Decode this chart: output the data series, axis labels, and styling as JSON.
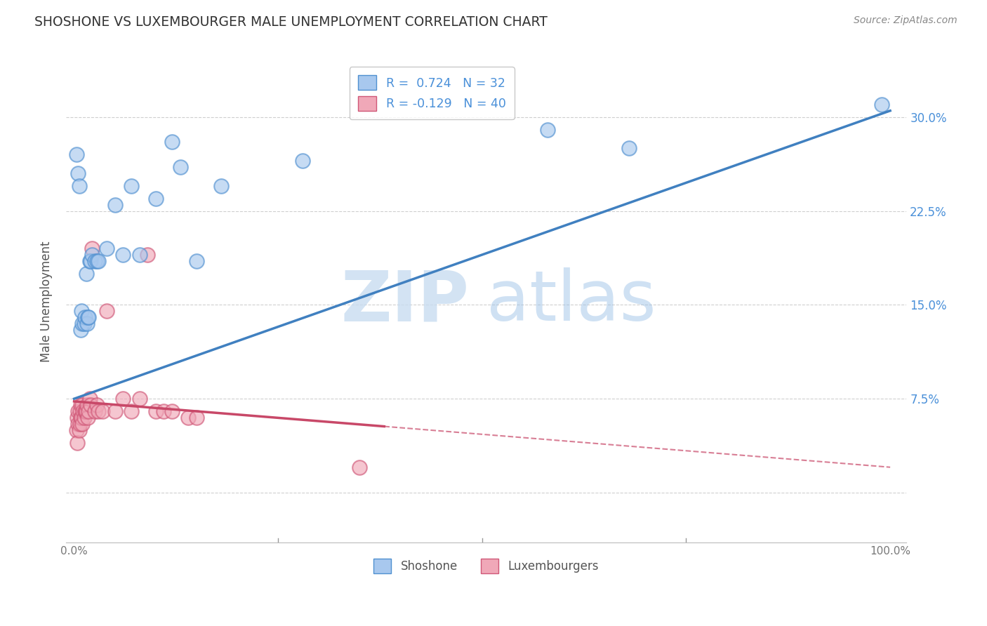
{
  "title": "SHOSHONE VS LUXEMBOURGER MALE UNEMPLOYMENT CORRELATION CHART",
  "source": "Source: ZipAtlas.com",
  "ylabel": "Male Unemployment",
  "xlim": [
    -0.01,
    1.02
  ],
  "ylim": [
    -0.04,
    0.345
  ],
  "yticks": [
    0.0,
    0.075,
    0.15,
    0.225,
    0.3
  ],
  "ytick_labels_right": [
    "",
    "7.5%",
    "15.0%",
    "22.5%",
    "30.0%"
  ],
  "xticks": [
    0.0,
    0.25,
    0.5,
    0.75,
    1.0
  ],
  "xtick_labels": [
    "0.0%",
    "",
    "",
    "",
    "100.0%"
  ],
  "shoshone_R": 0.724,
  "shoshone_N": 32,
  "luxembourger_R": -0.129,
  "luxembourger_N": 40,
  "shoshone_color": "#A8C8EE",
  "luxembourger_color": "#F0A8B8",
  "shoshone_edge_color": "#5090D0",
  "luxembourger_edge_color": "#D05878",
  "shoshone_line_color": "#4080C0",
  "luxembourger_line_color": "#C84868",
  "watermark_zip": "ZIP",
  "watermark_atlas": "atlas",
  "background_color": "#FFFFFF",
  "grid_color": "#BBBBBB",
  "shoshone_x": [
    0.003,
    0.005,
    0.006,
    0.008,
    0.009,
    0.01,
    0.012,
    0.013,
    0.015,
    0.016,
    0.017,
    0.018,
    0.019,
    0.02,
    0.022,
    0.025,
    0.028,
    0.03,
    0.04,
    0.05,
    0.06,
    0.07,
    0.08,
    0.1,
    0.12,
    0.13,
    0.15,
    0.18,
    0.28,
    0.58,
    0.68,
    0.99
  ],
  "shoshone_y": [
    0.27,
    0.255,
    0.245,
    0.13,
    0.145,
    0.135,
    0.135,
    0.14,
    0.175,
    0.135,
    0.14,
    0.14,
    0.185,
    0.185,
    0.19,
    0.185,
    0.185,
    0.185,
    0.195,
    0.23,
    0.19,
    0.245,
    0.19,
    0.235,
    0.28,
    0.26,
    0.185,
    0.245,
    0.265,
    0.29,
    0.275,
    0.31
  ],
  "luxembourger_x": [
    0.003,
    0.004,
    0.004,
    0.005,
    0.005,
    0.006,
    0.007,
    0.007,
    0.008,
    0.008,
    0.009,
    0.01,
    0.01,
    0.011,
    0.012,
    0.013,
    0.014,
    0.015,
    0.016,
    0.017,
    0.018,
    0.019,
    0.02,
    0.022,
    0.025,
    0.028,
    0.03,
    0.035,
    0.04,
    0.05,
    0.06,
    0.07,
    0.08,
    0.09,
    0.1,
    0.11,
    0.12,
    0.14,
    0.15,
    0.35
  ],
  "luxembourger_y": [
    0.05,
    0.04,
    0.06,
    0.055,
    0.065,
    0.05,
    0.055,
    0.065,
    0.06,
    0.07,
    0.06,
    0.055,
    0.07,
    0.065,
    0.06,
    0.065,
    0.065,
    0.065,
    0.07,
    0.06,
    0.065,
    0.075,
    0.07,
    0.195,
    0.065,
    0.07,
    0.065,
    0.065,
    0.145,
    0.065,
    0.075,
    0.065,
    0.075,
    0.19,
    0.065,
    0.065,
    0.065,
    0.06,
    0.06,
    0.02
  ],
  "lux_line_solid_end": 0.38,
  "lux_line_dash_end": 1.0,
  "blue_line_x0": 0.0,
  "blue_line_x1": 1.0,
  "blue_line_y0": 0.075,
  "blue_line_y1": 0.305
}
